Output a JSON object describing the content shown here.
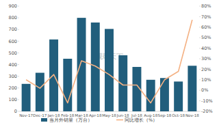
{
  "chart_data": {
    "type": "bar",
    "categories": [
      "Nov-17",
      "Dec-17",
      "Jan-18",
      "Feb-18",
      "Mar-18",
      "Apr-18",
      "May-18",
      "Jun-18",
      "Jul-18",
      "Aug-18",
      "Sep-18",
      "Oct-18",
      "Nov-18"
    ],
    "series": [
      {
        "name": "当月外销量（万台）",
        "type": "bar",
        "color": "#215e7c",
        "values": [
          235,
          330,
          615,
          450,
          800,
          760,
          705,
          480,
          380,
          270,
          285,
          255,
          390
        ]
      },
      {
        "name": "同比增长（%）",
        "type": "line",
        "color": "#f4b183",
        "axis": "y2",
        "values": [
          10,
          2,
          15,
          -12,
          28,
          23,
          15,
          5,
          5,
          -12,
          10,
          18,
          67
        ]
      }
    ],
    "ylim": [
      0,
      900
    ],
    "yticks": [
      0,
      100,
      200,
      300,
      400,
      500,
      600,
      700,
      800,
      900
    ],
    "y2lim": [
      -20,
      80
    ],
    "y2ticks": [
      {
        "value": -20,
        "label": "-20%"
      },
      {
        "value": -10,
        "label": "-10%"
      },
      {
        "value": 0,
        "label": "0%"
      },
      {
        "value": 10,
        "label": "10%"
      },
      {
        "value": 20,
        "label": "20%"
      },
      {
        "value": 30,
        "label": "30%"
      },
      {
        "value": 40,
        "label": "40%"
      },
      {
        "value": 50,
        "label": "50%"
      },
      {
        "value": 60,
        "label": "60%"
      },
      {
        "value": 70,
        "label": "70%"
      },
      {
        "value": 80,
        "label": "80%"
      }
    ],
    "grid": false,
    "legend": "bottom",
    "watermark": "观研天下"
  }
}
